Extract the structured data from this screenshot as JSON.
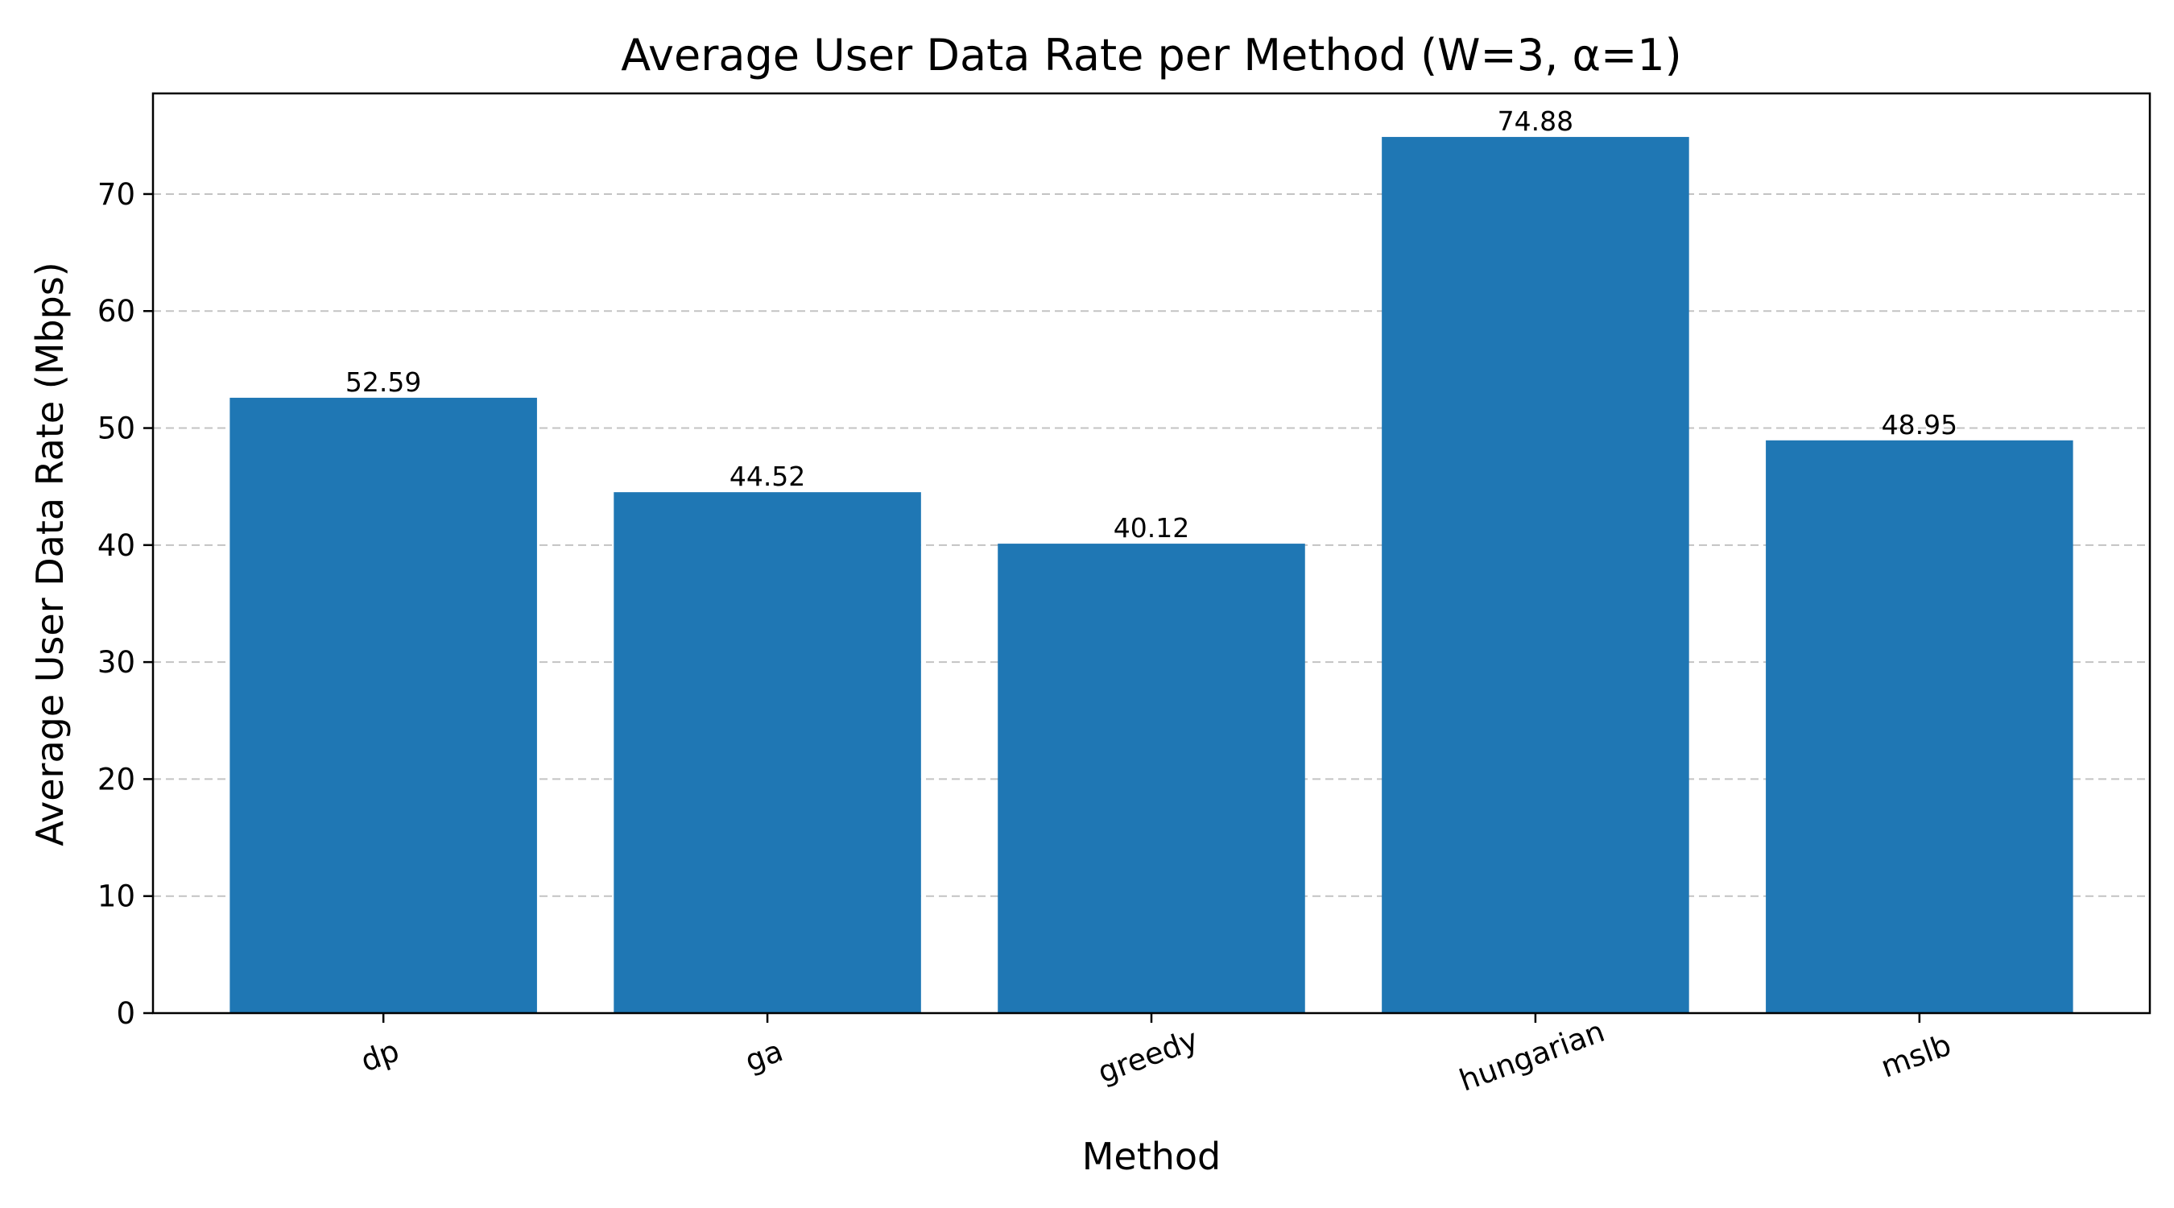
{
  "chart_data": {
    "type": "bar",
    "title": "Average User Data Rate per Method (W=3, α=1)",
    "xlabel": "Method",
    "ylabel": "Average User Data Rate (Mbps)",
    "categories": [
      "dp",
      "ga",
      "greedy",
      "hungarian",
      "mslb"
    ],
    "values": [
      52.59,
      44.52,
      40.12,
      74.88,
      48.95
    ],
    "value_labels": [
      "52.59",
      "44.52",
      "40.12",
      "74.88",
      "48.95"
    ],
    "ylim": [
      0,
      78.6
    ],
    "yticks": [
      0,
      10,
      20,
      30,
      40,
      50,
      60,
      70
    ],
    "grid": true,
    "grid_axis": "y",
    "bar_color": "#1f77b4",
    "xtick_rotation_deg": -20
  }
}
